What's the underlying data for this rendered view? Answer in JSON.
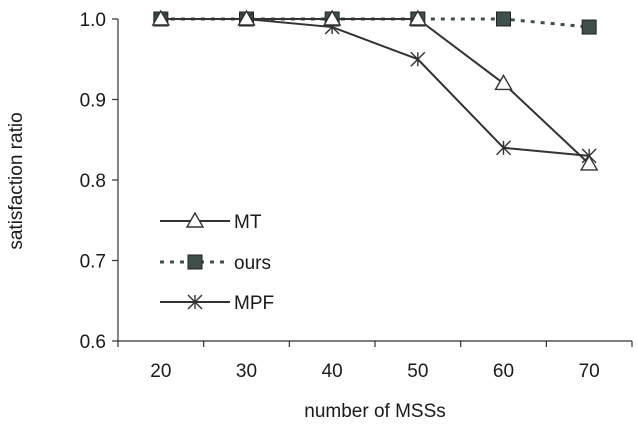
{
  "chart_data": {
    "type": "line",
    "title": "",
    "xlabel": "number of MSSs",
    "ylabel": "satisfaction ratio",
    "categories": [
      "20",
      "30",
      "40",
      "50",
      "60",
      "70"
    ],
    "ylim": [
      0.6,
      1.0
    ],
    "yticks": [
      "0.6",
      "0.7",
      "0.8",
      "0.9",
      "1.0"
    ],
    "grid": false,
    "legend_position": "left-middle",
    "series": [
      {
        "name": "MT",
        "marker": "triangle-open",
        "line": "solid",
        "color": "#333333",
        "values": [
          1.0,
          1.0,
          1.0,
          1.0,
          0.92,
          0.82
        ]
      },
      {
        "name": "ours",
        "marker": "square-filled",
        "line": "dotted",
        "color": "#3f4f4c",
        "values": [
          1.0,
          1.0,
          1.0,
          1.0,
          1.0,
          0.99
        ]
      },
      {
        "name": "MPF",
        "marker": "asterisk",
        "line": "solid",
        "color": "#333333",
        "values": [
          1.0,
          1.0,
          0.99,
          0.95,
          0.84,
          0.83
        ]
      }
    ]
  }
}
